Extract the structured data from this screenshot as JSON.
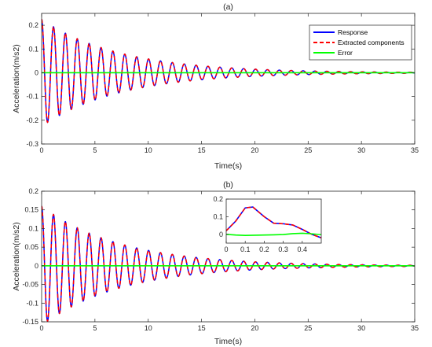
{
  "chart_data": [
    {
      "type": "line",
      "title": "(a)",
      "xlabel": "Time(s)",
      "ylabel": "Acceleration(m/s2)",
      "xlim": [
        0,
        35
      ],
      "ylim": [
        -0.3,
        0.25
      ],
      "xticks": [
        0,
        5,
        10,
        15,
        20,
        25,
        30,
        35
      ],
      "yticks": [
        -0.3,
        -0.2,
        -0.1,
        0,
        0.1,
        0.2
      ],
      "ytick_labels": [
        "-0.3",
        "-0.2",
        "-0.1",
        "0",
        "0.1",
        "0.2"
      ],
      "grid": false,
      "legend_position": "top-right",
      "series": [
        {
          "name": "Response",
          "color": "#0000ff",
          "style": "solid",
          "model": {
            "type": "damped_cosine",
            "amplitude": 0.225,
            "decay_rate": 0.135,
            "period": 1.115,
            "duration": 35
          },
          "peaks": [
            [
              0.1,
              0.225
            ],
            [
              1.15,
              0.175
            ],
            [
              2.25,
              0.135
            ],
            [
              3.35,
              0.108
            ],
            [
              4.45,
              0.088
            ],
            [
              5.55,
              0.075
            ],
            [
              6.7,
              0.063
            ],
            [
              7.8,
              0.053
            ],
            [
              8.9,
              0.045
            ]
          ],
          "troughs": [
            [
              0.65,
              -0.2
            ],
            [
              1.75,
              -0.155
            ],
            [
              2.85,
              -0.12
            ],
            [
              3.95,
              -0.098
            ],
            [
              5.05,
              -0.08
            ],
            [
              6.15,
              -0.068
            ],
            [
              7.25,
              -0.057
            ],
            [
              8.35,
              -0.048
            ]
          ]
        },
        {
          "name": "Extracted components",
          "color": "#ff0000",
          "style": "dashed",
          "model": {
            "type": "damped_cosine",
            "amplitude": 0.225,
            "decay_rate": 0.135,
            "period": 1.115,
            "duration": 35
          }
        },
        {
          "name": "Error",
          "color": "#00ff00",
          "style": "solid",
          "model": {
            "type": "constant",
            "value": 0.0
          }
        }
      ]
    },
    {
      "type": "line",
      "title": "(b)",
      "xlabel": "Time(s)",
      "ylabel": "Acceleration(m/s2)",
      "xlim": [
        0,
        35
      ],
      "ylim": [
        -0.15,
        0.2
      ],
      "xticks": [
        0,
        5,
        10,
        15,
        20,
        25,
        30,
        35
      ],
      "yticks": [
        -0.15,
        -0.1,
        -0.05,
        0,
        0.05,
        0.1,
        0.15,
        0.2
      ],
      "ytick_labels": [
        "-0.15",
        "-0.1",
        "-0.05",
        "0",
        "0.05",
        "0.1",
        "0.15",
        "0.2"
      ],
      "grid": false,
      "series": [
        {
          "name": "Response",
          "color": "#0000ff",
          "style": "solid",
          "model": {
            "type": "damped_cosine",
            "amplitude": 0.16,
            "decay_rate": 0.135,
            "period": 1.115,
            "duration": 35
          },
          "peaks": [
            [
              0.1,
              0.16
            ],
            [
              1.15,
              0.1
            ],
            [
              2.25,
              0.083
            ],
            [
              3.35,
              0.07
            ],
            [
              4.45,
              0.058
            ],
            [
              5.55,
              0.05
            ],
            [
              6.7,
              0.042
            ]
          ],
          "troughs": [
            [
              0.65,
              -0.115
            ],
            [
              1.75,
              -0.088
            ],
            [
              2.85,
              -0.072
            ],
            [
              3.95,
              -0.062
            ],
            [
              5.05,
              -0.052
            ],
            [
              6.15,
              -0.045
            ]
          ]
        },
        {
          "name": "Extracted components",
          "color": "#ff0000",
          "style": "dashed",
          "model": {
            "type": "damped_cosine",
            "amplitude": 0.16,
            "decay_rate": 0.135,
            "period": 1.115,
            "duration": 35
          }
        },
        {
          "name": "Error",
          "color": "#00ff00",
          "style": "solid",
          "model": {
            "type": "constant",
            "value": 0.0
          }
        }
      ],
      "inset": {
        "xlim": [
          0,
          0.5
        ],
        "ylim": [
          -0.05,
          0.2
        ],
        "xticks": [
          0,
          0.1,
          0.2,
          0.3,
          0.4
        ],
        "xtick_labels": [
          "0",
          "0.1",
          "0.2",
          "0.3",
          "0.4"
        ],
        "yticks": [
          0,
          0.1,
          0.2
        ],
        "ytick_labels": [
          "0",
          "0.1",
          "0.2"
        ],
        "series": [
          {
            "name": "Response",
            "color": "#0000ff",
            "style": "solid",
            "x": [
              0,
              0.05,
              0.1,
              0.14,
              0.2,
              0.25,
              0.3,
              0.35,
              0.4,
              0.45,
              0.5
            ],
            "y": [
              0.02,
              0.075,
              0.15,
              0.155,
              0.1,
              0.063,
              0.06,
              0.053,
              0.028,
              0.0,
              -0.02
            ]
          },
          {
            "name": "Extracted components",
            "color": "#ff0000",
            "style": "dashed",
            "x": [
              0,
              0.05,
              0.1,
              0.14,
              0.2,
              0.25,
              0.3,
              0.35,
              0.4,
              0.45,
              0.5
            ],
            "y": [
              0.02,
              0.075,
              0.15,
              0.155,
              0.1,
              0.063,
              0.06,
              0.053,
              0.028,
              0.0,
              -0.02
            ]
          },
          {
            "name": "Error",
            "color": "#00ff00",
            "style": "solid",
            "x": [
              0,
              0.05,
              0.1,
              0.15,
              0.2,
              0.25,
              0.3,
              0.35,
              0.4,
              0.45,
              0.5
            ],
            "y": [
              0.0,
              -0.004,
              -0.006,
              -0.005,
              -0.004,
              -0.003,
              -0.001,
              0.004,
              0.006,
              0.003,
              -0.002
            ]
          }
        ]
      }
    }
  ]
}
